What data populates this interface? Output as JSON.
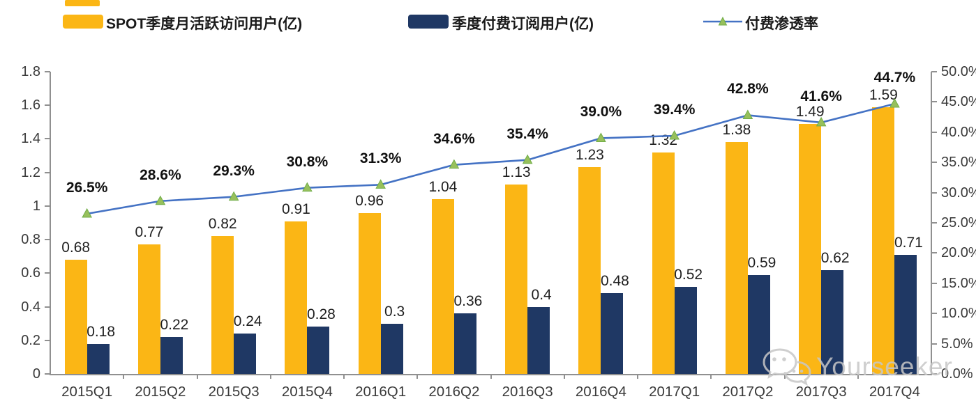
{
  "chart_data": {
    "type": "bar+line combo",
    "categories": [
      "2015Q1",
      "2015Q2",
      "2015Q3",
      "2015Q4",
      "2016Q1",
      "2016Q2",
      "2016Q3",
      "2016Q4",
      "2017Q1",
      "2017Q2",
      "2017Q3",
      "2017Q4"
    ],
    "series": [
      {
        "name": "SPOT季度月活跃访问用户(亿)",
        "type": "bar",
        "axis": "left",
        "color": "#FBB615",
        "values": [
          0.68,
          0.77,
          0.82,
          0.91,
          0.96,
          1.04,
          1.13,
          1.23,
          1.32,
          1.38,
          1.49,
          1.59
        ],
        "value_labels": [
          "0.68",
          "0.77",
          "0.82",
          "0.91",
          "0.96",
          "1.04",
          "1.13",
          "1.23",
          "1.32",
          "1.38",
          "1.49",
          "1.59"
        ]
      },
      {
        "name": "季度付费订阅用户(亿)",
        "type": "bar",
        "axis": "left",
        "color": "#1F3864",
        "values": [
          0.18,
          0.22,
          0.24,
          0.28,
          0.3,
          0.36,
          0.4,
          0.48,
          0.52,
          0.59,
          0.62,
          0.71
        ],
        "value_labels": [
          "0.18",
          "0.22",
          "0.24",
          "0.28",
          "0.3",
          "0.36",
          "0.4",
          "0.48",
          "0.52",
          "0.59",
          "0.62",
          "0.71"
        ]
      },
      {
        "name": "付费渗透率",
        "type": "line",
        "axis": "right",
        "color": "#4472C4",
        "marker": "triangle",
        "marker_fill": "#97C05C",
        "marker_stroke": "#70AD47",
        "values": [
          26.5,
          28.6,
          29.3,
          30.8,
          31.3,
          34.6,
          35.4,
          39.0,
          39.4,
          42.8,
          41.6,
          44.7
        ],
        "value_labels": [
          "26.5%",
          "28.6%",
          "29.3%",
          "30.8%",
          "31.3%",
          "34.6%",
          "35.4%",
          "39.0%",
          "39.4%",
          "42.8%",
          "41.6%",
          "44.7%"
        ]
      }
    ],
    "left_axis": {
      "min": 0,
      "max": 1.8,
      "ticks": [
        "1.8",
        "1.6",
        "1.4",
        "1.2",
        "1",
        "0.8",
        "0.6",
        "0.4",
        "0.2",
        "0"
      ]
    },
    "right_axis": {
      "min": 0,
      "max": 50,
      "ticks": [
        "50.0%",
        "45.0%",
        "40.0%",
        "35.0%",
        "30.0%",
        "25.0%",
        "20.0%",
        "15.0%",
        "10.0%",
        "5.0%",
        "0.0%"
      ]
    },
    "legend_position": "top",
    "grid": false,
    "axis_color": "#909090"
  },
  "watermark": {
    "text": "Yourseeker",
    "icon": "wechat-chat-bubbles-icon"
  }
}
